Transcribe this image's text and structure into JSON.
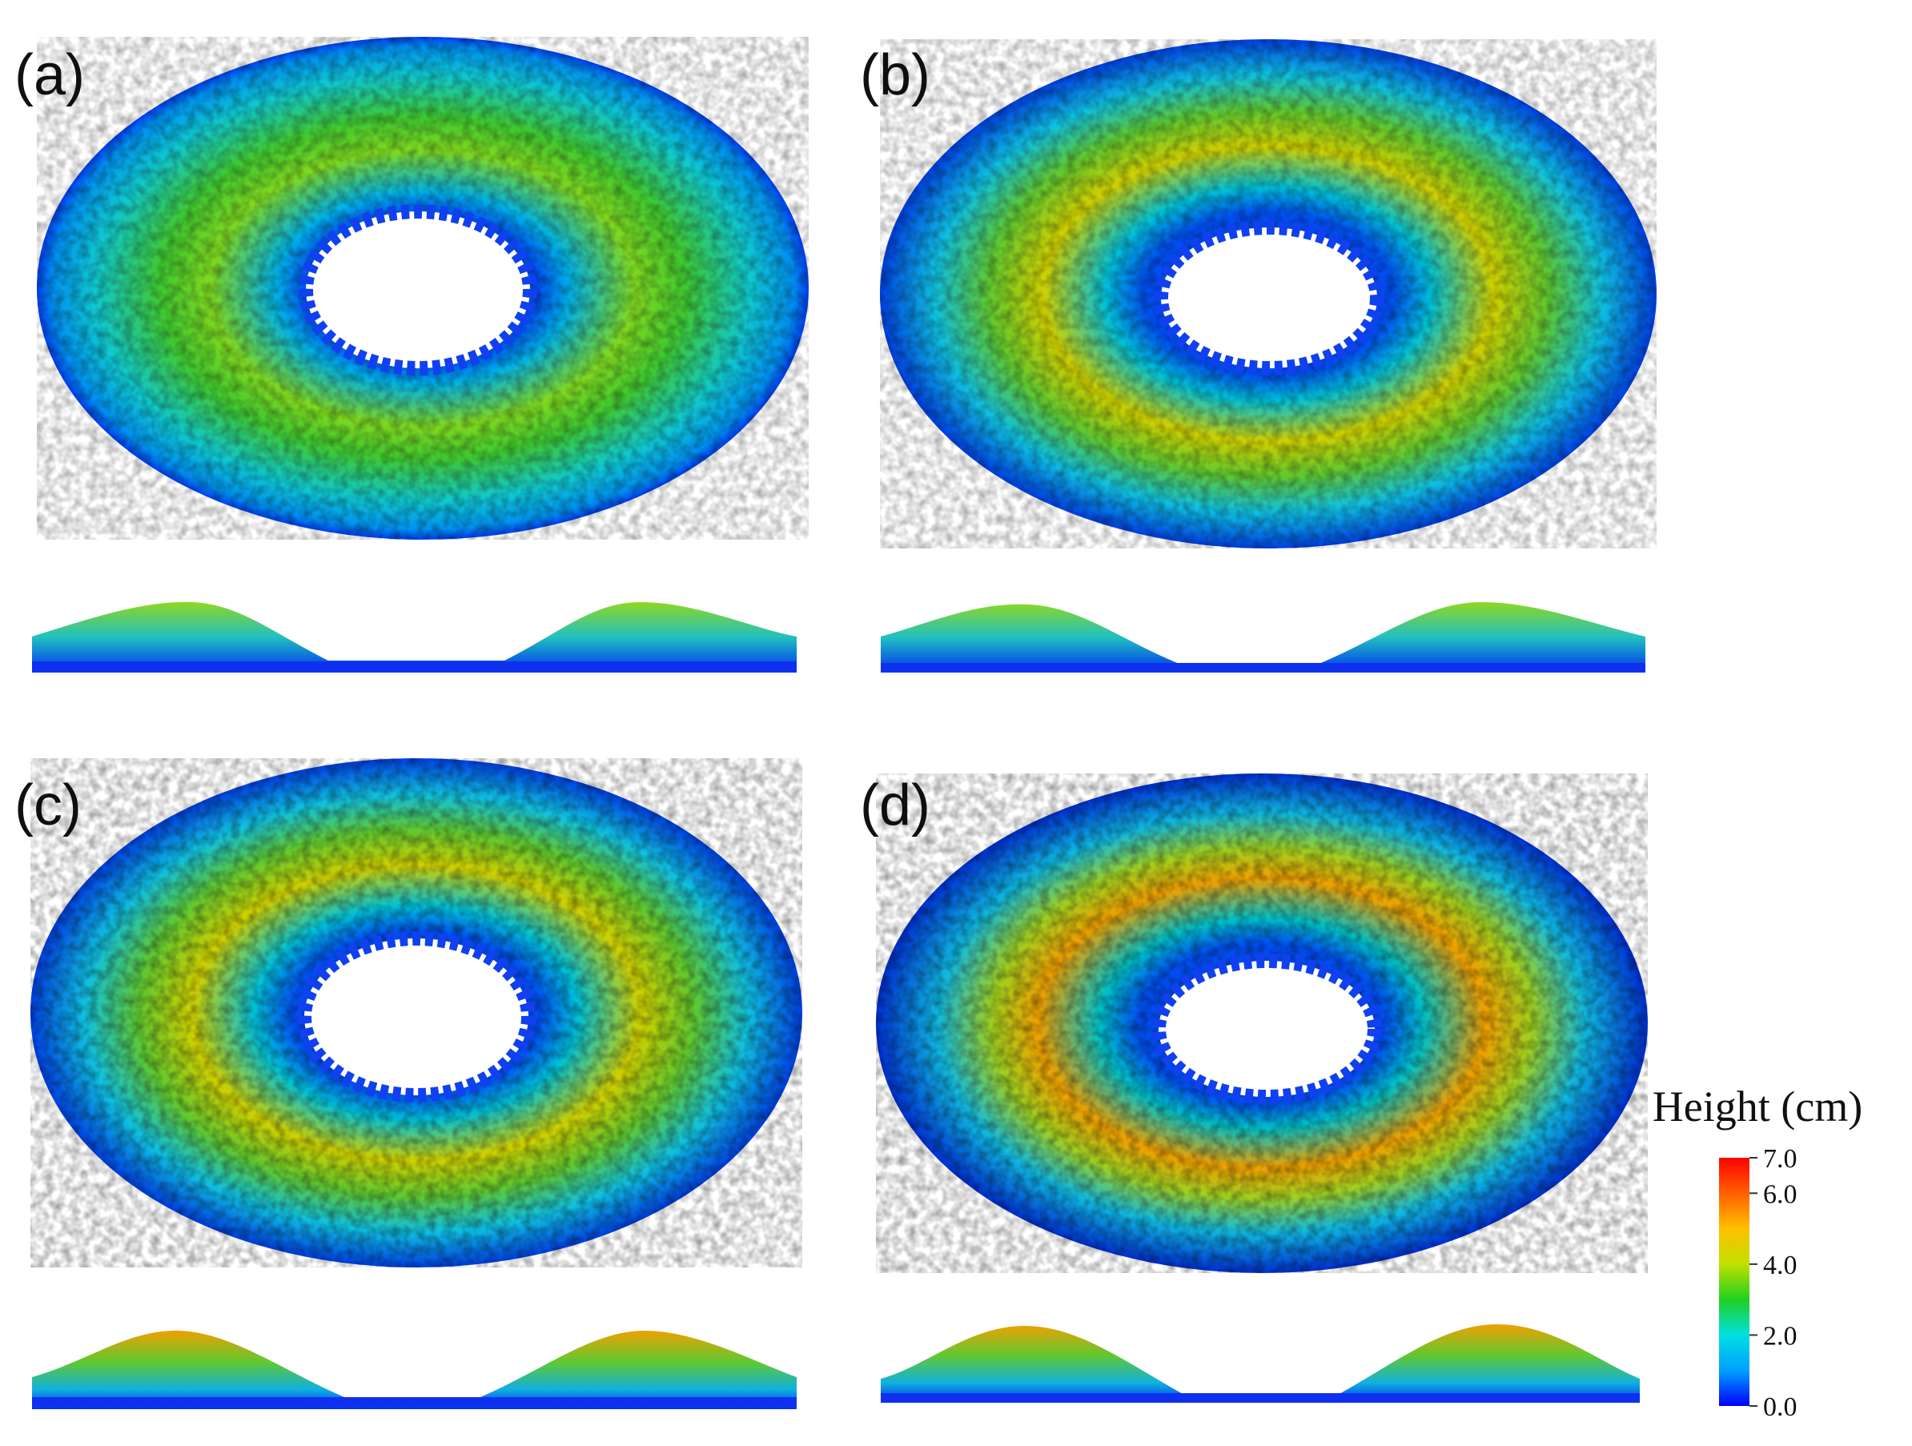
{
  "panels": [
    {
      "label": "(a)"
    },
    {
      "label": "(b)"
    },
    {
      "label": "(c)"
    },
    {
      "label": "(d)"
    }
  ],
  "colorbar": {
    "title": "Height (cm)",
    "range": [
      0,
      7
    ],
    "ticks": [
      {
        "value": 0,
        "label": "0.0"
      },
      {
        "value": 2,
        "label": "2.0"
      },
      {
        "value": 4,
        "label": "4.0"
      },
      {
        "value": 6,
        "label": "6.0"
      },
      {
        "value": 7,
        "label": "7.0"
      }
    ],
    "colors": [
      "#0000ff",
      "#00a0ff",
      "#00e0e0",
      "#20d020",
      "#c0e000",
      "#ffc000",
      "#ff6000",
      "#ff0000"
    ]
  }
}
